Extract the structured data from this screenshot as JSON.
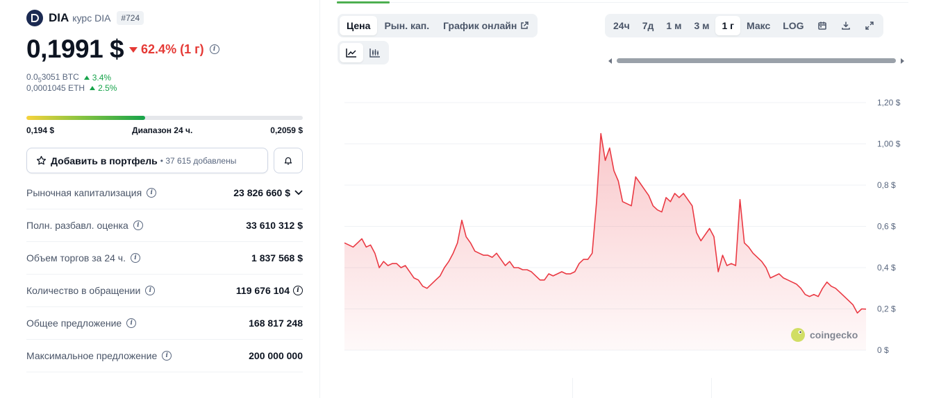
{
  "coin": {
    "name": "DIA",
    "subtitle": "курс DIA",
    "rank": "#724",
    "price": "0,1991 $",
    "change": "62.4% (1 г)"
  },
  "conversions": [
    {
      "prefix": "0.0",
      "sub": "5",
      "rest": "3051 BTC",
      "change": "3.4%"
    },
    {
      "prefix": "0,0001045 ETH",
      "sub": "",
      "rest": "",
      "change": "2.5%"
    }
  ],
  "range24": {
    "low": "0,194 $",
    "label": "Диапазон 24 ч.",
    "high": "0,2059 $",
    "fill_percent": 43
  },
  "portfolio": {
    "label": "Добавить в портфель",
    "count": "• 37 615 добавлены"
  },
  "stats": [
    {
      "label": "Рыночная капитализация",
      "value": "23 826 660 $",
      "chevron": true,
      "value_info": false
    },
    {
      "label": "Полн. разбавл. оценка",
      "value": "33 610 312 $",
      "chevron": false,
      "value_info": false
    },
    {
      "label": "Объем торгов за 24 ч.",
      "value": "1 837 568 $",
      "chevron": false,
      "value_info": false
    },
    {
      "label": "Количество в обращении",
      "value": "119 676 104",
      "chevron": false,
      "value_info": true
    },
    {
      "label": "Общее предложение",
      "value": "168 817 248",
      "chevron": false,
      "value_info": false
    },
    {
      "label": "Максимальное предложение",
      "value": "200 000 000",
      "chevron": false,
      "value_info": false
    }
  ],
  "chart_tabs": [
    {
      "label": "Цена",
      "active": true
    },
    {
      "label": "Рын. кап.",
      "active": false
    },
    {
      "label": "График онлайн",
      "active": false,
      "external": true
    }
  ],
  "time_ranges": [
    {
      "label": "24ч",
      "active": false
    },
    {
      "label": "7д",
      "active": false
    },
    {
      "label": "1 м",
      "active": false
    },
    {
      "label": "3 м",
      "active": false
    },
    {
      "label": "1 г",
      "active": true
    },
    {
      "label": "Макс",
      "active": false
    },
    {
      "label": "LOG",
      "active": false
    }
  ],
  "icons": {
    "calendar": "calendar-icon",
    "download": "download-icon",
    "fullscreen": "fullscreen-icon",
    "line_chart": "line-chart-icon",
    "candle_chart": "candlestick-chart-icon",
    "star": "star-icon",
    "bell": "bell-icon"
  },
  "watermark": "coingecko",
  "colors": {
    "line": "#ea3943",
    "positive": "#16a34a",
    "negative": "#e53935"
  },
  "chart_data": {
    "type": "area",
    "title": "",
    "xlabel": "",
    "ylabel": "",
    "y_tick_labels": [
      "0 $",
      "0,2 $",
      "0,4 $",
      "0,6 $",
      "0,8 $",
      "1,00 $",
      "1,20 $"
    ],
    "y_ticks": [
      0,
      0.2,
      0.4,
      0.6,
      0.8,
      1.0,
      1.2
    ],
    "ylim": [
      0,
      1.2
    ],
    "grid": true,
    "series": [
      {
        "values": [
          0.52,
          0.51,
          0.5,
          0.52,
          0.54,
          0.5,
          0.51,
          0.47,
          0.4,
          0.43,
          0.41,
          0.42,
          0.42,
          0.4,
          0.41,
          0.38,
          0.35,
          0.34,
          0.31,
          0.3,
          0.32,
          0.34,
          0.36,
          0.4,
          0.43,
          0.47,
          0.52,
          0.63,
          0.55,
          0.52,
          0.48,
          0.47,
          0.46,
          0.46,
          0.45,
          0.47,
          0.44,
          0.41,
          0.43,
          0.4,
          0.4,
          0.39,
          0.39,
          0.38,
          0.36,
          0.34,
          0.34,
          0.37,
          0.36,
          0.37,
          0.38,
          0.37,
          0.37,
          0.38,
          0.42,
          0.44,
          0.44,
          0.47,
          0.72,
          1.05,
          0.92,
          0.98,
          0.87,
          0.82,
          0.72,
          0.71,
          0.7,
          0.84,
          0.81,
          0.78,
          0.75,
          0.7,
          0.68,
          0.67,
          0.74,
          0.72,
          0.76,
          0.74,
          0.76,
          0.73,
          0.7,
          0.57,
          0.53,
          0.56,
          0.59,
          0.55,
          0.38,
          0.46,
          0.41,
          0.42,
          0.41,
          0.73,
          0.52,
          0.5,
          0.47,
          0.45,
          0.43,
          0.4,
          0.35,
          0.36,
          0.37,
          0.35,
          0.34,
          0.33,
          0.32,
          0.3,
          0.27,
          0.26,
          0.27,
          0.26,
          0.3,
          0.33,
          0.31,
          0.3,
          0.28,
          0.26,
          0.24,
          0.22,
          0.18,
          0.2,
          0.1991
        ]
      }
    ]
  }
}
